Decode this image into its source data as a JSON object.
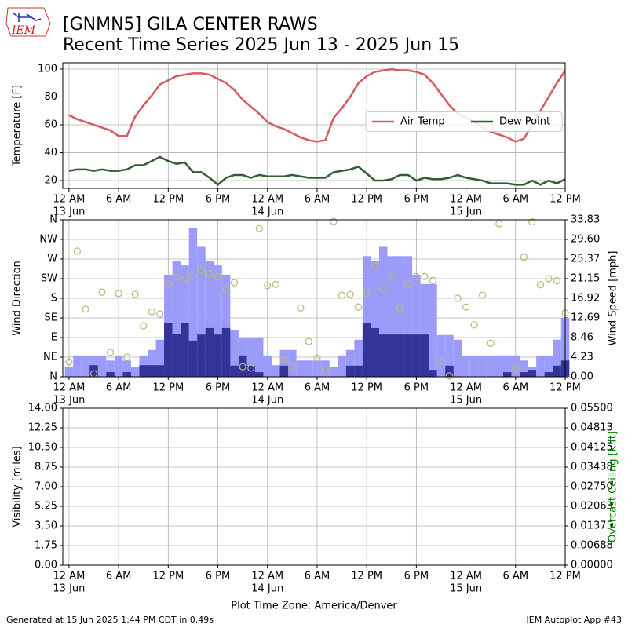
{
  "title": "[GNMN5] GILA CENTER RAWS",
  "subtitle": "Recent Time Series 2025 Jun 13 - 2025 Jun 15",
  "logo_text": "IEM",
  "footer_left": "Generated at 15 Jun 2025 1:44 PM CDT in 0.49s",
  "footer_right": "IEM Autoplot App #43",
  "chart_data": [
    {
      "type": "line",
      "ylabel": "Temperature [F]",
      "grid": true,
      "legend": "center right",
      "xlim": [
        -0.75,
        60
      ],
      "ylim": [
        14.4,
        104.5
      ],
      "yticks": [
        20,
        40,
        60,
        80,
        100
      ],
      "xticks": [
        {
          "value": 0,
          "label": "12 AM"
        },
        {
          "value": 6,
          "label": "6 AM"
        },
        {
          "value": 12,
          "label": "12 PM"
        },
        {
          "value": 18,
          "label": "6 PM"
        },
        {
          "value": 24,
          "label": "12 AM"
        },
        {
          "value": 30,
          "label": "6 AM"
        },
        {
          "value": 36,
          "label": "12 PM"
        },
        {
          "value": 42,
          "label": "6 PM"
        },
        {
          "value": 48,
          "label": "12 AM"
        },
        {
          "value": 54,
          "label": "6 AM"
        },
        {
          "value": 60,
          "label": "12 PM"
        }
      ],
      "xdates": [
        {
          "value": 0,
          "label": "13 Jun"
        },
        {
          "value": 24,
          "label": "14 Jun"
        },
        {
          "value": 48,
          "label": "15 Jun"
        }
      ],
      "x": [
        0,
        1,
        2,
        3,
        4,
        5,
        6,
        7,
        8,
        9,
        10,
        11,
        12,
        13,
        14,
        15,
        16,
        17,
        18,
        19,
        20,
        21,
        22,
        23,
        24,
        25,
        26,
        27,
        28,
        29,
        30,
        31,
        32,
        33,
        34,
        35,
        36,
        37,
        38,
        39,
        40,
        41,
        42,
        43,
        44,
        45,
        46,
        47,
        48,
        49,
        50,
        51,
        52,
        53,
        54,
        55,
        56,
        57,
        58,
        59,
        60
      ],
      "series": [
        {
          "name": "Air Temp",
          "color": "#d65a60",
          "values": [
            67,
            64,
            62,
            60,
            58,
            56,
            52,
            52,
            66,
            74,
            81,
            89,
            92,
            95,
            96,
            97,
            97,
            96,
            93,
            90,
            85,
            78,
            73,
            68,
            62,
            59,
            57,
            54,
            51,
            49,
            48,
            49,
            65,
            72,
            80,
            90,
            95,
            98,
            99,
            100,
            99,
            99,
            98,
            96,
            90,
            82,
            74,
            68,
            65,
            62,
            58,
            55,
            53,
            51,
            48,
            50,
            60,
            70,
            80,
            90,
            99
          ]
        },
        {
          "name": "Dew Point",
          "color": "#2f5f2f",
          "values": [
            27,
            28,
            28,
            27,
            28,
            27,
            27,
            28,
            31,
            31,
            34,
            37,
            34,
            32,
            33,
            26,
            26,
            22,
            17,
            22,
            24,
            24,
            22,
            24,
            23,
            23,
            23,
            24,
            23,
            22,
            22,
            22,
            26,
            27,
            28,
            30,
            25,
            20,
            20,
            21,
            24,
            24,
            20,
            22,
            21,
            21,
            22,
            24,
            22,
            21,
            20,
            18,
            18,
            18,
            17,
            17,
            20,
            17,
            20,
            18,
            21
          ]
        }
      ]
    },
    {
      "type": "bar",
      "ylabel": "Wind Direction",
      "y2label": "Wind Speed [mph]",
      "grid": true,
      "xlim": [
        -0.75,
        60
      ],
      "ylim": [
        0,
        360
      ],
      "y2lim": [
        0,
        33.83
      ],
      "yticks": [
        {
          "value": 0,
          "label": "N"
        },
        {
          "value": 45,
          "label": "NE"
        },
        {
          "value": 90,
          "label": "E"
        },
        {
          "value": 135,
          "label": "SE"
        },
        {
          "value": 180,
          "label": "S"
        },
        {
          "value": 225,
          "label": "SW"
        },
        {
          "value": 270,
          "label": "W"
        },
        {
          "value": 315,
          "label": "NW"
        },
        {
          "value": 360,
          "label": "N"
        }
      ],
      "y2ticks": [
        {
          "value": 0,
          "label": "0.00"
        },
        4.23,
        8.46,
        12.69,
        16.92,
        21.15,
        25.37,
        {
          "value": 29.6,
          "label": "29.60"
        },
        33.83
      ],
      "xticks": [
        {
          "value": 0,
          "label": "12 AM"
        },
        {
          "value": 6,
          "label": "6 AM"
        },
        {
          "value": 12,
          "label": "12 PM"
        },
        {
          "value": 18,
          "label": "6 PM"
        },
        {
          "value": 24,
          "label": "12 AM"
        },
        {
          "value": 30,
          "label": "6 AM"
        },
        {
          "value": 36,
          "label": "12 PM"
        },
        {
          "value": 42,
          "label": "6 PM"
        },
        {
          "value": 48,
          "label": "12 AM"
        },
        {
          "value": 54,
          "label": "6 AM"
        },
        {
          "value": 60,
          "label": "12 PM"
        }
      ],
      "xdates": [
        {
          "value": 0,
          "label": "13 Jun"
        },
        {
          "value": 24,
          "label": "14 Jun"
        },
        {
          "value": 48,
          "label": "15 Jun"
        }
      ],
      "x": [
        0,
        1,
        2,
        3,
        4,
        5,
        6,
        7,
        8,
        9,
        10,
        11,
        12,
        13,
        14,
        15,
        16,
        17,
        18,
        19,
        20,
        21,
        22,
        23,
        24,
        25,
        26,
        27,
        28,
        29,
        30,
        31,
        32,
        33,
        34,
        35,
        36,
        37,
        38,
        39,
        40,
        41,
        42,
        43,
        44,
        45,
        46,
        47,
        48,
        49,
        50,
        51,
        52,
        53,
        54,
        55,
        56,
        57,
        58,
        59,
        60
      ],
      "series": [
        {
          "type": "bar",
          "axis": "y2",
          "color": "#9b9bf9",
          "values": [
            2.2,
            4.6,
            4.6,
            4.6,
            4.6,
            3.5,
            4.6,
            3.5,
            2.2,
            4.6,
            5.8,
            8,
            22,
            25,
            24,
            32,
            28,
            25,
            24,
            22,
            10,
            8.5,
            8.5,
            8.5,
            4.6,
            2.5,
            5.8,
            5.8,
            3.5,
            3.5,
            3.5,
            3.5,
            2.2,
            4.6,
            5.8,
            8,
            26,
            25,
            28,
            26,
            26,
            26,
            22,
            20,
            20,
            9,
            9,
            8,
            4.6,
            4.6,
            4.6,
            4.6,
            4.6,
            4.6,
            4.6,
            3.5,
            2.2,
            4.6,
            4.6,
            8,
            12.7
          ]
        },
        {
          "type": "bar",
          "axis": "y2",
          "color": "#333399",
          "values": [
            0,
            0,
            0,
            2.5,
            0,
            1,
            0,
            1,
            0,
            2.5,
            2.5,
            2.5,
            11.5,
            9.3,
            11.5,
            7.8,
            9.1,
            10.5,
            9.1,
            10.5,
            2.4,
            4.6,
            2.4,
            1,
            0,
            0,
            2.4,
            0,
            0,
            0,
            0,
            0,
            0,
            0,
            2.4,
            2.4,
            11.5,
            10.5,
            9.1,
            9.1,
            9.1,
            9.1,
            9.1,
            9.1,
            1.5,
            0,
            2.4,
            0,
            0,
            0,
            0,
            0,
            0,
            1,
            0,
            1,
            1.5,
            0,
            1,
            2.4,
            3.5
          ]
        },
        {
          "type": "scatter",
          "color": "#b8b87a",
          "values": [
            34,
            288,
            155,
            7,
            194,
            56,
            191,
            45,
            189,
            117,
            149,
            144,
            211,
            229,
            225,
            230,
            245,
            236,
            230,
            200,
            216,
            23,
            20,
            340,
            209,
            212,
            40,
            25,
            158,
            81,
            43,
            16,
            356,
            187,
            189,
            160,
            191,
            254,
            202,
            234,
            158,
            214,
            230,
            230,
            221,
            36,
            2,
            180,
            160,
            119,
            187,
            77,
            351,
            null,
            18,
            274,
            355,
            211,
            225,
            220,
            146
          ]
        }
      ]
    },
    {
      "type": "line",
      "ylabel": "Visibility [miles]",
      "y2label": "Overcast Ceiling [k ft]",
      "y2color": "#008000",
      "grid": true,
      "xlabel": "Plot Time Zone: America/Denver",
      "xlim": [
        -0.75,
        60
      ],
      "ylim": [
        0,
        14
      ],
      "y2lim": [
        0,
        0.055
      ],
      "yticks": [
        {
          "value": 0,
          "label": "0.00"
        },
        1.75,
        {
          "value": 3.5,
          "label": "3.50"
        },
        5.25,
        {
          "value": 7,
          "label": "7.00"
        },
        8.75,
        {
          "value": 10.5,
          "label": "10.50"
        },
        12.25,
        {
          "value": 14,
          "label": "14.00"
        }
      ],
      "y2ticks": [
        {
          "value": 0,
          "label": "0.00000"
        },
        {
          "value": 0.006875,
          "label": "0.00688"
        },
        {
          "value": 0.01375,
          "label": "0.01375"
        },
        {
          "value": 0.020625,
          "label": "0.02063"
        },
        {
          "value": 0.0275,
          "label": "0.02750"
        },
        {
          "value": 0.034375,
          "label": "0.03438"
        },
        {
          "value": 0.04125,
          "label": "0.04125"
        },
        {
          "value": 0.048125,
          "label": "0.04813"
        },
        {
          "value": 0.055,
          "label": "0.05500"
        }
      ],
      "xticks": [
        {
          "value": 0,
          "label": "12 AM"
        },
        {
          "value": 6,
          "label": "6 AM"
        },
        {
          "value": 12,
          "label": "12 PM"
        },
        {
          "value": 18,
          "label": "6 PM"
        },
        {
          "value": 24,
          "label": "12 AM"
        },
        {
          "value": 30,
          "label": "6 AM"
        },
        {
          "value": 36,
          "label": "12 PM"
        },
        {
          "value": 42,
          "label": "6 PM"
        },
        {
          "value": 48,
          "label": "12 AM"
        },
        {
          "value": 54,
          "label": "6 AM"
        },
        {
          "value": 60,
          "label": "12 PM"
        }
      ],
      "xdates": [
        {
          "value": 0,
          "label": "13 Jun"
        },
        {
          "value": 24,
          "label": "14 Jun"
        },
        {
          "value": 48,
          "label": "15 Jun"
        }
      ]
    }
  ]
}
